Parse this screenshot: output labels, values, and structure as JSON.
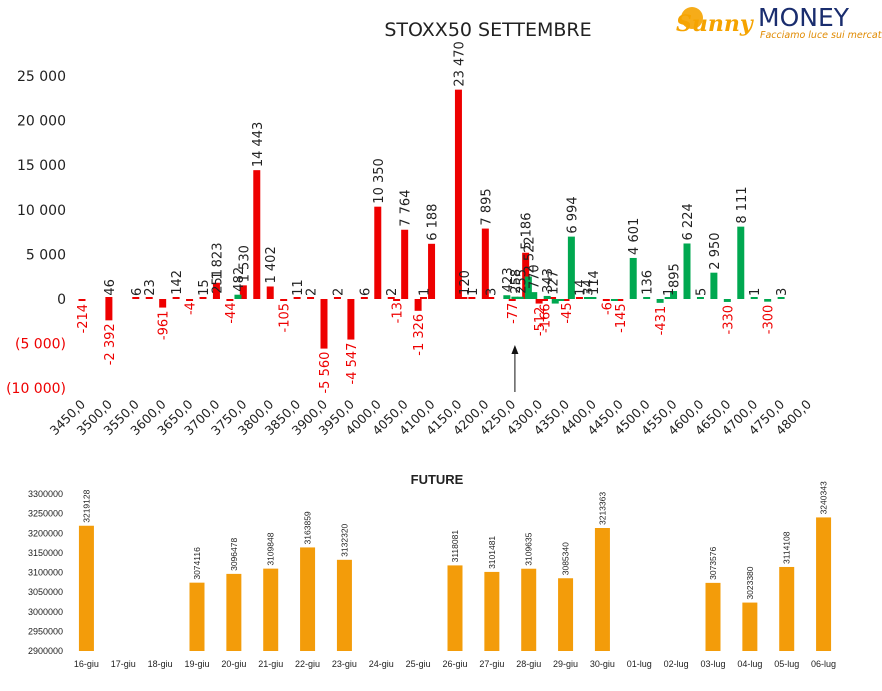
{
  "logo": {
    "brand_first": "Sunny",
    "brand_second": "MONEY",
    "tagline": "Facciamo luce sui mercati",
    "colors": {
      "sun": "#f5a300",
      "blue": "#1a2d6e",
      "tagline": "#e08a00"
    }
  },
  "colors": {
    "put": "#ee0000",
    "call": "#00a850",
    "future": "#f39c0a",
    "negative_label": "#ee0000",
    "text": "#222222"
  },
  "chart_data": [
    {
      "type": "bar",
      "title": "STOXX50 SETTEMBRE",
      "xlabel": "",
      "ylabel": "",
      "ylim": [
        -10000,
        25000
      ],
      "y_ticks": [
        {
          "value": 25000,
          "label": "25 000"
        },
        {
          "value": 20000,
          "label": "20 000"
        },
        {
          "value": 15000,
          "label": "15 000"
        },
        {
          "value": 10000,
          "label": "10 000"
        },
        {
          "value": 5000,
          "label": "5 000"
        },
        {
          "value": 0,
          "label": "0"
        },
        {
          "value": -5000,
          "label": "(5 000)"
        },
        {
          "value": -10000,
          "label": "(10 000)"
        }
      ],
      "x_ticks": [
        "3450,0",
        "3500,0",
        "3550,0",
        "3600,0",
        "3650,0",
        "3700,0",
        "3750,0",
        "3800,0",
        "3850,0",
        "3900,0",
        "3950,0",
        "4000,0",
        "4050,0",
        "4100,0",
        "4150,0",
        "4200,0",
        "4250,0",
        "4300,0",
        "4350,0",
        "4400,0",
        "4450,0",
        "4500,0",
        "4550,0",
        "4600,0",
        "4650,0",
        "4700,0",
        "4750,0",
        "4800,0"
      ],
      "grid": false,
      "legend": "none",
      "annotation": "arrow marking current price near 4250",
      "annotation_x": 4255,
      "series": [
        {
          "color": "#ee0000",
          "points": [
            {
              "x": 3450,
              "value": -214,
              "label": "-214"
            },
            {
              "x": 3500,
              "value": 46,
              "label": "46"
            },
            {
              "x": 3500,
              "value": -2392,
              "label": "-2 392"
            },
            {
              "x": 3550,
              "value": 6,
              "label": "6"
            },
            {
              "x": 3575,
              "value": 23,
              "label": "23"
            },
            {
              "x": 3600,
              "value": -961,
              "label": "-961"
            },
            {
              "x": 3625,
              "value": 142,
              "label": "142"
            },
            {
              "x": 3650,
              "value": -4,
              "label": "-4"
            },
            {
              "x": 3675,
              "value": 15,
              "label": "15"
            },
            {
              "x": 3700,
              "value": 251,
              "label": "251"
            },
            {
              "x": 3700,
              "value": 1823,
              "label": "1 823"
            },
            {
              "x": 3725,
              "value": -44,
              "label": "-44"
            },
            {
              "x": 3750,
              "value": 1530,
              "label": "1 530"
            },
            {
              "x": 3775,
              "value": 14443,
              "label": "14 443"
            },
            {
              "x": 3800,
              "value": 1402,
              "label": "1 402"
            },
            {
              "x": 3825,
              "value": -105,
              "label": "-105"
            },
            {
              "x": 3850,
              "value": 11,
              "label": "11"
            },
            {
              "x": 3875,
              "value": 2,
              "label": "2"
            },
            {
              "x": 3900,
              "value": -5560,
              "label": "-5 560"
            },
            {
              "x": 3925,
              "value": 2,
              "label": "2"
            },
            {
              "x": 3950,
              "value": -4547,
              "label": "-4 547"
            },
            {
              "x": 3975,
              "value": 6,
              "label": "6"
            },
            {
              "x": 4000,
              "value": 10350,
              "label": "10 350"
            },
            {
              "x": 4025,
              "value": 2,
              "label": "2"
            },
            {
              "x": 4035,
              "value": -13,
              "label": "-13"
            },
            {
              "x": 4050,
              "value": 7764,
              "label": "7 764"
            },
            {
              "x": 4075,
              "value": -1326,
              "label": "-1 326"
            },
            {
              "x": 4085,
              "value": 1,
              "label": "1"
            },
            {
              "x": 4100,
              "value": 6188,
              "label": "6 188"
            },
            {
              "x": 4150,
              "value": 23470,
              "label": "23 470"
            },
            {
              "x": 4160,
              "value": 120,
              "label": "120"
            },
            {
              "x": 4175,
              "value": 1,
              "label": "1"
            },
            {
              "x": 4200,
              "value": 7895,
              "label": "7 895"
            },
            {
              "x": 4210,
              "value": 3,
              "label": "3"
            },
            {
              "x": 4250,
              "value": -77,
              "label": "-77"
            },
            {
              "x": 4275,
              "value": 5186,
              "label": "5 186"
            },
            {
              "x": 4300,
              "value": -512,
              "label": "-512"
            },
            {
              "x": 4310,
              "value": -166,
              "label": "-166"
            },
            {
              "x": 4325,
              "value": 127,
              "label": "127"
            },
            {
              "x": 4350,
              "value": -45,
              "label": "-45"
            },
            {
              "x": 4375,
              "value": 14,
              "label": "14"
            },
            {
              "x": 4425,
              "value": -6,
              "label": "-6"
            },
            {
              "x": 4450,
              "value": -145,
              "label": "-145"
            }
          ]
        },
        {
          "color": "#00a850",
          "points": [
            {
              "x": 3740,
              "value": 482,
              "label": "482"
            },
            {
              "x": 4240,
              "value": 423,
              "label": "423"
            },
            {
              "x": 4255,
              "value": 258,
              "label": "258"
            },
            {
              "x": 4265,
              "value": 255,
              "label": "255"
            },
            {
              "x": 4280,
              "value": 2522,
              "label": "2 522"
            },
            {
              "x": 4290,
              "value": 770,
              "label": "770"
            },
            {
              "x": 4315,
              "value": 343,
              "label": "343"
            },
            {
              "x": 4330,
              "value": -512,
              "label": ""
            },
            {
              "x": 4340,
              "value": -166,
              "label": ""
            },
            {
              "x": 4360,
              "value": 6994,
              "label": "6 994"
            },
            {
              "x": 4390,
              "value": 34,
              "label": "34"
            },
            {
              "x": 4400,
              "value": 114,
              "label": "114"
            },
            {
              "x": 4440,
              "value": -145,
              "label": ""
            },
            {
              "x": 4475,
              "value": 4601,
              "label": "4 601"
            },
            {
              "x": 4500,
              "value": 136,
              "label": "136"
            },
            {
              "x": 4525,
              "value": -431,
              "label": "-431"
            },
            {
              "x": 4540,
              "value": 1,
              "label": "1"
            },
            {
              "x": 4550,
              "value": 895,
              "label": "895"
            },
            {
              "x": 4575,
              "value": 6224,
              "label": "6 224"
            },
            {
              "x": 4600,
              "value": 5,
              "label": "5"
            },
            {
              "x": 4625,
              "value": 2950,
              "label": "2 950"
            },
            {
              "x": 4650,
              "value": -330,
              "label": "-330"
            },
            {
              "x": 4675,
              "value": 8111,
              "label": "8 111"
            },
            {
              "x": 4700,
              "value": 1,
              "label": "1"
            },
            {
              "x": 4725,
              "value": -300,
              "label": "-300"
            },
            {
              "x": 4750,
              "value": 3,
              "label": "3"
            }
          ]
        }
      ]
    },
    {
      "type": "bar",
      "title": "FUTURE",
      "xlabel": "",
      "ylabel": "",
      "ylim": [
        2900000,
        3300000
      ],
      "y_ticks": [
        3300000,
        3250000,
        3200000,
        3150000,
        3100000,
        3050000,
        3000000,
        2950000,
        2900000
      ],
      "categories": [
        "16-giu",
        "17-giu",
        "18-giu",
        "19-giu",
        "20-giu",
        "21-giu",
        "22-giu",
        "23-giu",
        "24-giu",
        "25-giu",
        "26-giu",
        "27-giu",
        "28-giu",
        "29-giu",
        "30-giu",
        "01-lug",
        "02-lug",
        "03-lug",
        "04-lug",
        "05-lug",
        "06-lug"
      ],
      "values": [
        3219128,
        null,
        null,
        3074116,
        3096478,
        3109848,
        3163859,
        3132320,
        null,
        null,
        3118081,
        3101481,
        3109635,
        3085340,
        3213363,
        null,
        null,
        3073576,
        3023380,
        3114108,
        3240343
      ],
      "labels": [
        "3219128",
        "",
        "",
        "3074116",
        "3096478",
        "3109848",
        "3163859",
        "3132320",
        "",
        "",
        "3118081",
        "3101481",
        "3109635",
        "3085340",
        "3213363",
        "",
        "",
        "3073576",
        "3023380",
        "3114108",
        "3240343"
      ],
      "grid": false,
      "legend": "none"
    }
  ]
}
